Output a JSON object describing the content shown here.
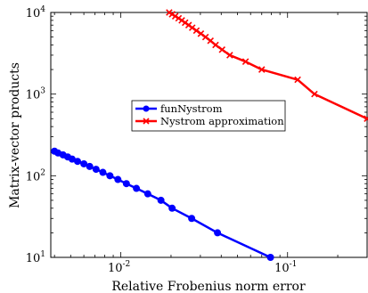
{
  "chart_data": {
    "type": "line",
    "xlabel": "Relative Frobenius norm error",
    "ylabel": "Matrix-vector products",
    "xscale": "log",
    "yscale": "log",
    "xlim": [
      0.0038,
      0.3
    ],
    "ylim": [
      10,
      10000
    ],
    "x_ticks": [
      {
        "value": 0.01,
        "base": "10",
        "exp": "-2"
      },
      {
        "value": 0.1,
        "base": "10",
        "exp": "-1"
      }
    ],
    "y_ticks": [
      {
        "value": 10,
        "base": "10",
        "exp": "1"
      },
      {
        "value": 100,
        "base": "10",
        "exp": "2"
      },
      {
        "value": 1000,
        "base": "10",
        "exp": "3"
      },
      {
        "value": 10000,
        "base": "10",
        "exp": "4"
      }
    ],
    "grid": false,
    "legend_position": "center",
    "series": [
      {
        "name": "funNystrom",
        "color": "#0000ff",
        "marker": "circle",
        "points": [
          [
            0.004,
            200
          ],
          [
            0.0042,
            190
          ],
          [
            0.0045,
            180
          ],
          [
            0.0048,
            170
          ],
          [
            0.0051,
            160
          ],
          [
            0.0055,
            150
          ],
          [
            0.006,
            140
          ],
          [
            0.0065,
            130
          ],
          [
            0.0071,
            120
          ],
          [
            0.0078,
            110
          ],
          [
            0.0086,
            100
          ],
          [
            0.0096,
            90
          ],
          [
            0.0108,
            80
          ],
          [
            0.0124,
            70
          ],
          [
            0.0145,
            60
          ],
          [
            0.0174,
            50
          ],
          [
            0.0203,
            40
          ],
          [
            0.0266,
            30
          ],
          [
            0.038,
            20
          ],
          [
            0.079,
            10
          ]
        ]
      },
      {
        "name": "Nystrom approximation",
        "color": "#ff0000",
        "marker": "x",
        "points": [
          [
            0.0195,
            10000
          ],
          [
            0.0203,
            9500
          ],
          [
            0.0212,
            9000
          ],
          [
            0.0222,
            8500
          ],
          [
            0.0232,
            8000
          ],
          [
            0.0243,
            7500
          ],
          [
            0.0255,
            7000
          ],
          [
            0.0268,
            6500
          ],
          [
            0.0284,
            6000
          ],
          [
            0.0302,
            5500
          ],
          [
            0.0322,
            5000
          ],
          [
            0.0345,
            4500
          ],
          [
            0.037,
            4000
          ],
          [
            0.0405,
            3500
          ],
          [
            0.045,
            3000
          ],
          [
            0.056,
            2500
          ],
          [
            0.07,
            2000
          ],
          [
            0.115,
            1500
          ],
          [
            0.145,
            1000
          ],
          [
            0.3,
            500
          ]
        ]
      }
    ]
  }
}
